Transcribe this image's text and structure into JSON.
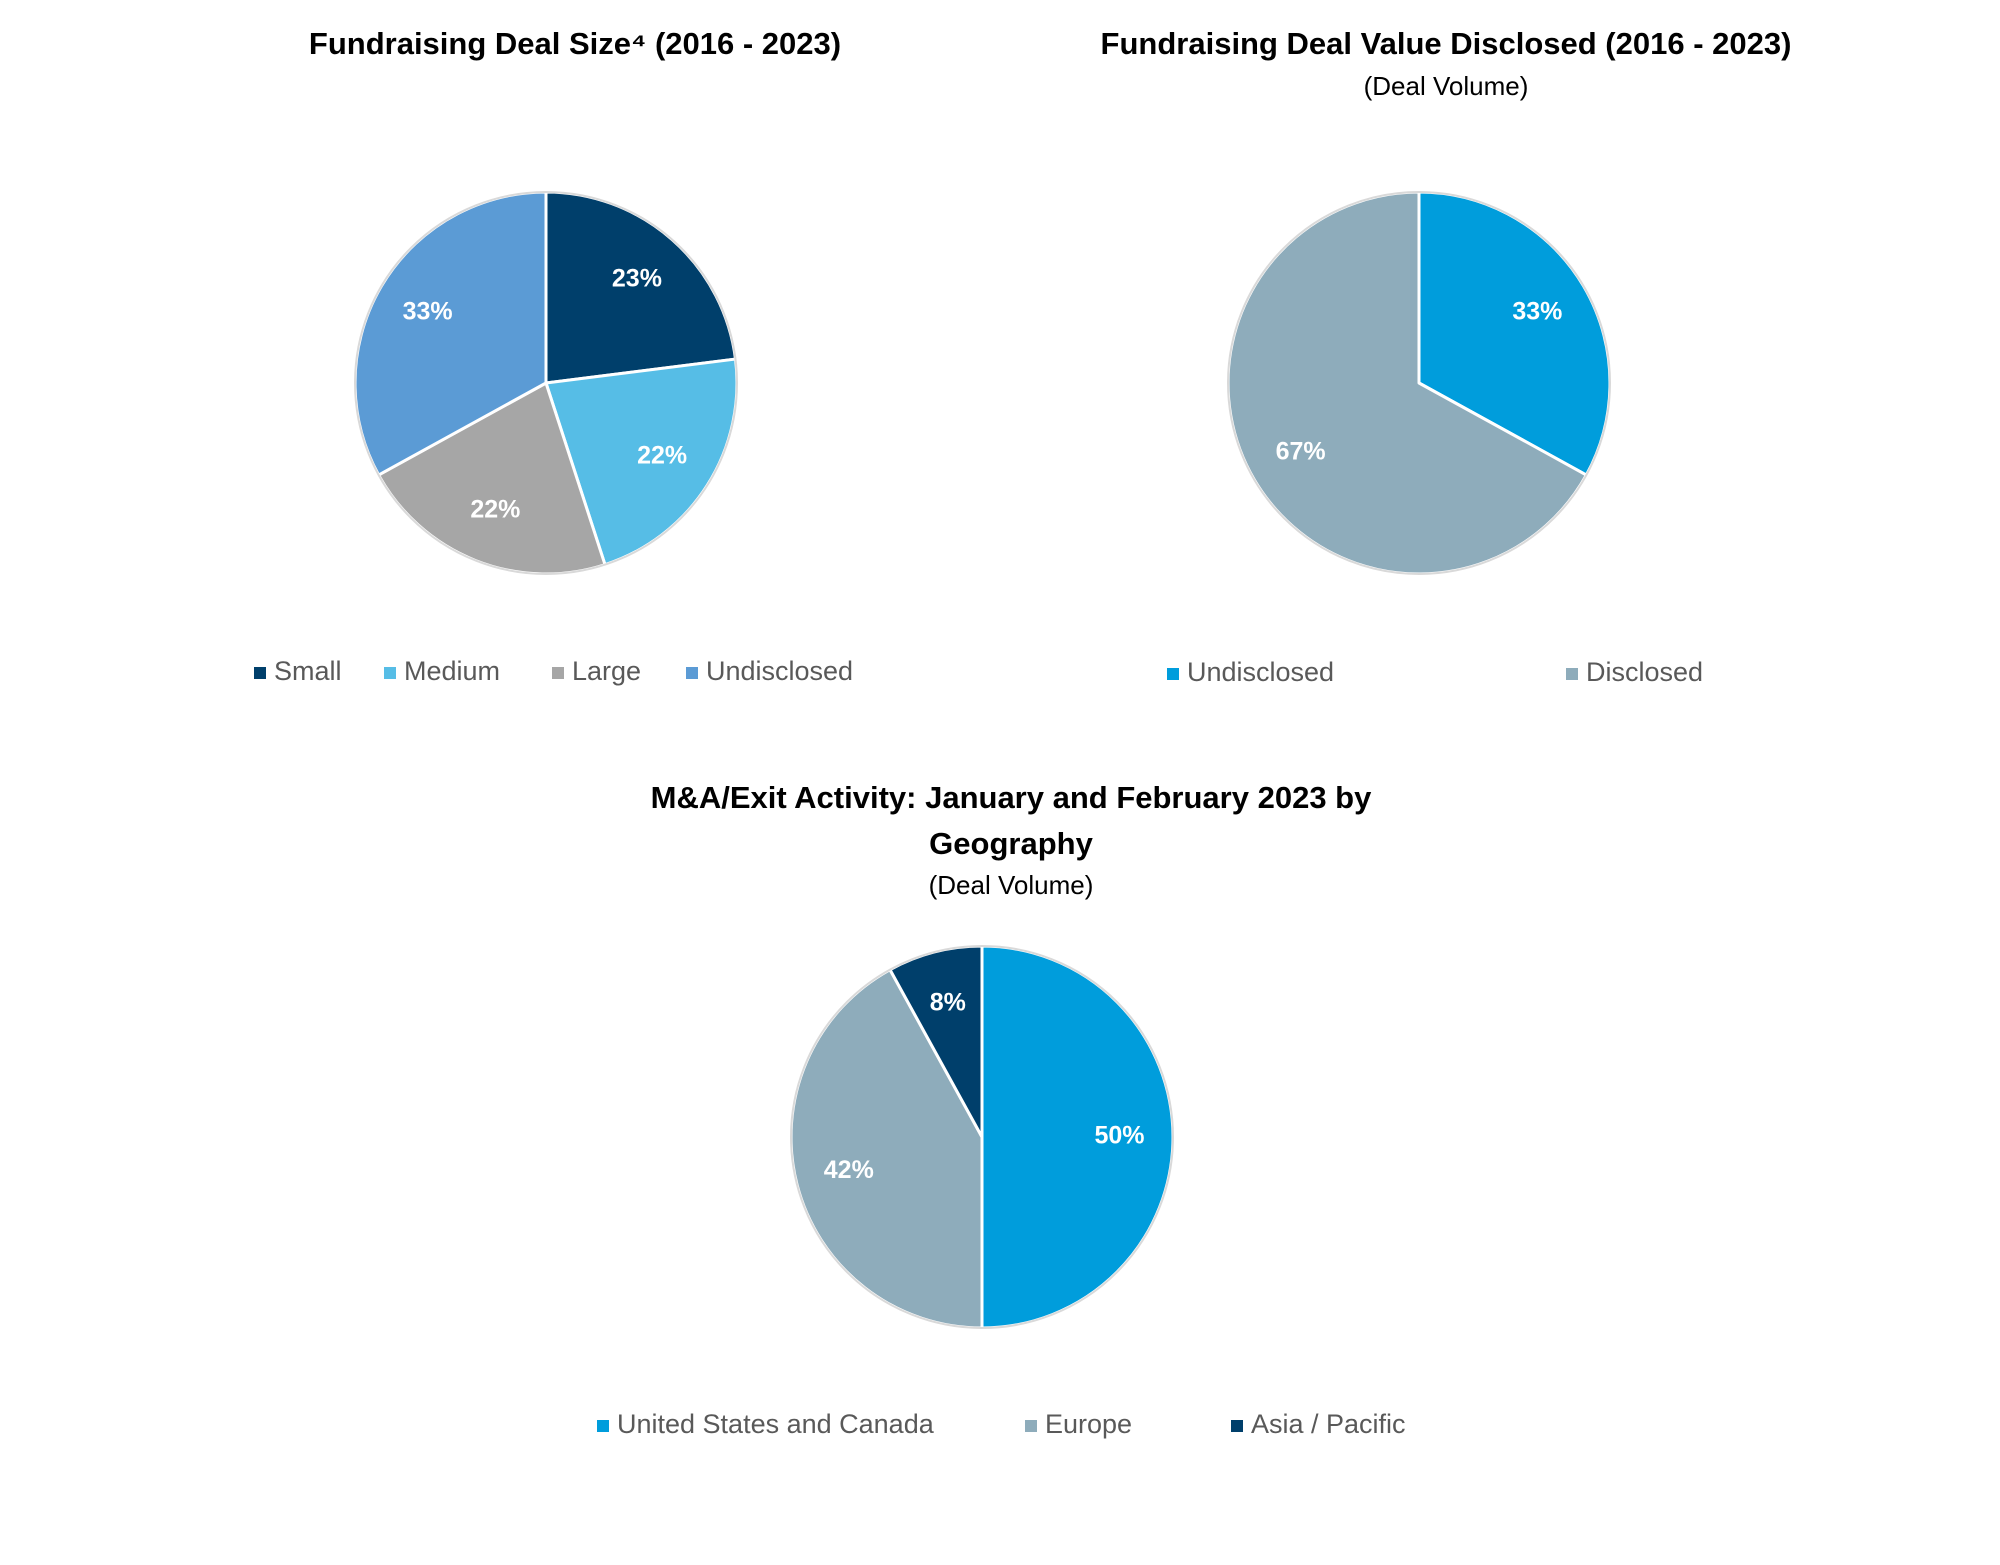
{
  "chart_data": [
    {
      "type": "pie",
      "title": "Fundraising Deal Size⁴ (2016 - 2023)",
      "categories": [
        "Small",
        "Medium",
        "Large",
        "Undisclosed"
      ],
      "values": [
        23,
        22,
        22,
        33
      ],
      "value_labels": [
        "23%",
        "22%",
        "22%",
        "33%"
      ],
      "colors": [
        "#003f6b",
        "#56bde6",
        "#a6a6a6",
        "#5b9bd5"
      ],
      "legend": "bottom"
    },
    {
      "type": "pie",
      "title": "Fundraising Deal Value Disclosed (2016 - 2023)",
      "subtitle": "(Deal Volume)",
      "categories": [
        "Undisclosed",
        "Disclosed"
      ],
      "values": [
        33,
        67
      ],
      "value_labels": [
        "33%",
        "67%"
      ],
      "colors": [
        "#009ddc",
        "#8eacbb"
      ],
      "legend": "bottom"
    },
    {
      "type": "pie",
      "title": [
        "M&A/Exit Activity: January and February 2023 by",
        "Geography"
      ],
      "subtitle": "(Deal Volume)",
      "categories": [
        "United States and Canada",
        "Europe",
        "Asia / Pacific"
      ],
      "values": [
        50,
        42,
        8
      ],
      "value_labels": [
        "50%",
        "42%",
        "8%"
      ],
      "colors": [
        "#009ddc",
        "#8eacbb",
        "#003f6b"
      ],
      "legend": "bottom"
    }
  ]
}
